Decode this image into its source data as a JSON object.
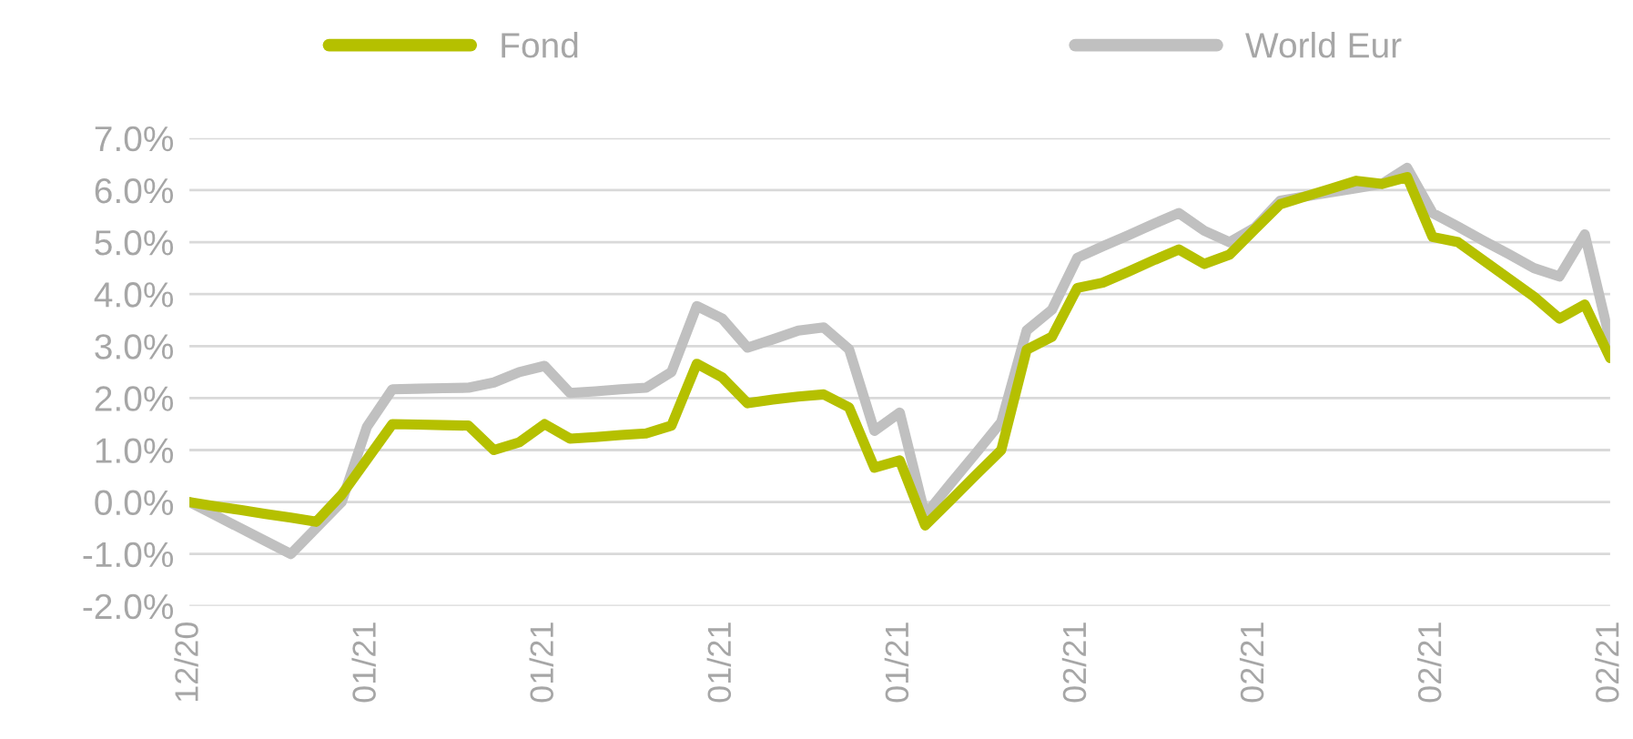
{
  "chart_data": {
    "type": "line",
    "categories": [
      "12/20",
      null,
      null,
      null,
      null,
      null,
      null,
      "01/21",
      null,
      null,
      null,
      null,
      null,
      null,
      "01/21",
      null,
      null,
      null,
      null,
      null,
      null,
      "01/21",
      null,
      null,
      null,
      null,
      null,
      null,
      "01/21",
      null,
      null,
      null,
      null,
      null,
      null,
      "02/21",
      null,
      null,
      null,
      null,
      null,
      null,
      "02/21",
      null,
      null,
      null,
      null,
      null,
      null,
      "02/21",
      null,
      null,
      null,
      null,
      null,
      null,
      "02/21"
    ],
    "ylim": [
      -2,
      7
    ],
    "yticks": [
      {
        "value": -2,
        "label": "-2.0%"
      },
      {
        "value": -1,
        "label": "-1.0%"
      },
      {
        "value": 0,
        "label": "0.0%"
      },
      {
        "value": 1,
        "label": "1.0%"
      },
      {
        "value": 2,
        "label": "2.0%"
      },
      {
        "value": 3,
        "label": "3.0%"
      },
      {
        "value": 4,
        "label": "4.0%"
      },
      {
        "value": 5,
        "label": "5.0%"
      },
      {
        "value": 6,
        "label": "6.0%"
      },
      {
        "value": 7,
        "label": "7.0%"
      }
    ],
    "grid": "y",
    "legend": "top",
    "line_style": "solid",
    "series": [
      {
        "name": "Fond",
        "color": "#b5c000",
        "values": [
          0,
          -0.08,
          -0.15,
          -0.23,
          -0.3,
          -0.38,
          0.14,
          0.82,
          1.5,
          1.49,
          1.48,
          1.47,
          1.0,
          1.15,
          1.5,
          1.22,
          1.25,
          1.29,
          1.32,
          1.47,
          2.66,
          2.4,
          1.9,
          1.97,
          2.03,
          2.07,
          1.82,
          0.66,
          0.8,
          -0.45,
          0.03,
          0.52,
          1.0,
          2.93,
          3.18,
          4.12,
          4.22,
          4.43,
          4.65,
          4.86,
          4.58,
          4.76,
          5.25,
          5.73,
          5.88,
          6.03,
          6.18,
          6.12,
          6.25,
          5.1,
          5.0,
          4.65,
          4.3,
          3.95,
          3.53,
          3.8,
          2.77
        ]
      },
      {
        "name": "World Eur",
        "color": "#c0c0c0",
        "values": [
          0,
          -0.25,
          -0.5,
          -0.75,
          -1.0,
          -0.5,
          0.0,
          1.45,
          2.17,
          2.18,
          2.19,
          2.2,
          2.3,
          2.5,
          2.62,
          2.1,
          2.13,
          2.17,
          2.2,
          2.5,
          3.77,
          3.53,
          2.97,
          3.13,
          3.3,
          3.36,
          2.94,
          1.37,
          1.72,
          -0.25,
          0.35,
          0.94,
          1.54,
          3.3,
          3.7,
          4.7,
          4.92,
          5.13,
          5.35,
          5.56,
          5.22,
          5.0,
          5.28,
          5.8,
          5.88,
          5.96,
          6.04,
          6.12,
          6.43,
          5.56,
          5.3,
          5.03,
          4.77,
          4.5,
          4.34,
          5.15,
          3.1
        ]
      }
    ]
  }
}
